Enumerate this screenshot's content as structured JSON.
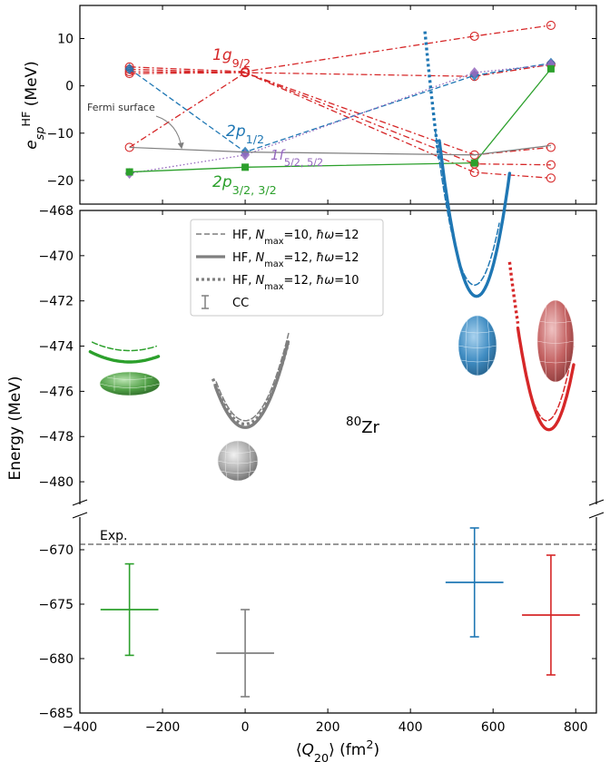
{
  "colors": {
    "red": "#d62728",
    "blue": "#1f77b4",
    "green": "#2ca02c",
    "gray": "#7f7f7f",
    "purple": "#9467bd"
  },
  "chart_data": [
    {
      "type": "line",
      "panel": "top",
      "ylabel_parts": [
        "e",
        "sp",
        "HF",
        " (MeV)"
      ],
      "ylim": [
        -25,
        17
      ],
      "yticks": [
        "10",
        "0",
        "−10",
        "−20"
      ],
      "annotations": {
        "fermi": "Fermi surface",
        "g92": [
          "1g",
          "9/2"
        ],
        "p12": [
          "2p",
          "1/2"
        ],
        "f52": [
          "1f",
          "5/2, 5/2"
        ],
        "p32": [
          "2p",
          "3/2, 3/2"
        ]
      },
      "series": [
        {
          "group": "1g9/2",
          "color": "red",
          "marker": "open-circle",
          "style": "dashdot",
          "x": [
            -280,
            0,
            555,
            740
          ],
          "y": [
            4.0,
            3.0,
            10.5,
            12.8
          ]
        },
        {
          "group": "1g9/2",
          "color": "red",
          "marker": "open-circle",
          "style": "dashdot",
          "x": [
            -280,
            0,
            555,
            740
          ],
          "y": [
            3.5,
            2.8,
            2.0,
            4.5
          ]
        },
        {
          "group": "1g9/2",
          "color": "red",
          "marker": "open-circle",
          "style": "dashdot",
          "x": [
            -280,
            0,
            555,
            740
          ],
          "y": [
            3.0,
            2.8,
            -14.6,
            -13.0
          ]
        },
        {
          "group": "1g9/2",
          "color": "red",
          "marker": "open-circle",
          "style": "dashdot",
          "x": [
            -280,
            0,
            555,
            740
          ],
          "y": [
            2.6,
            2.8,
            -16.5,
            -16.7
          ]
        },
        {
          "group": "1g9/2",
          "color": "red",
          "marker": "open-circle",
          "style": "dashdot",
          "x": [
            -280,
            0,
            555,
            740
          ],
          "y": [
            -13.0,
            2.8,
            -18.3,
            -19.5
          ]
        },
        {
          "group": "2p1/2",
          "color": "blue",
          "marker": "filled-diamond",
          "style": "dashed",
          "x": [
            -280,
            0,
            555,
            740
          ],
          "y": [
            3.6,
            -14.0,
            2.2,
            4.8
          ]
        },
        {
          "group": "1f5/2",
          "color": "purple",
          "marker": "filled-diamond",
          "style": "dotted",
          "x": [
            -280,
            0,
            555,
            740
          ],
          "y": [
            -18.5,
            -14.6,
            2.8,
            4.5
          ]
        },
        {
          "group": "2p3/2",
          "color": "green",
          "marker": "filled-square",
          "style": "solid",
          "x": [
            -280,
            0,
            555,
            740
          ],
          "y": [
            -18.2,
            -17.2,
            -16.3,
            3.6
          ]
        },
        {
          "group": "fermi",
          "color": "gray",
          "marker": "none",
          "style": "solid",
          "x": [
            -280,
            0,
            555,
            740
          ],
          "y": [
            -13.0,
            -14.0,
            -14.6,
            -12.6
          ]
        }
      ]
    },
    {
      "type": "line",
      "panel": "middle",
      "ylabel": "Energy (MeV)",
      "ylim": [
        -481,
        -468
      ],
      "yticks": [
        "−468",
        "−470",
        "−472",
        "−474",
        "−476",
        "−478",
        "−480"
      ],
      "nucleus": {
        "mass": "80",
        "symbol": "Zr"
      },
      "legend": {
        "placement": "upper-center",
        "entries": [
          {
            "style": "dashed",
            "parts": [
              "HF, ",
              "N",
              "max",
              "=10, ",
              "ħω",
              "=12"
            ]
          },
          {
            "style": "solid-thick",
            "parts": [
              "HF, ",
              "N",
              "max",
              "=12, ",
              "ħω",
              "=12"
            ]
          },
          {
            "style": "dotted",
            "parts": [
              "HF, ",
              "N",
              "max",
              "=12, ",
              "ħω",
              "=10"
            ]
          },
          {
            "style": "errorbar",
            "parts": [
              "CC"
            ]
          }
        ]
      },
      "series": [
        {
          "color": "green",
          "style": "dashed",
          "vertex": [
            -280,
            -474.2
          ],
          "curvature": 4.6e-05,
          "x_range": [
            -370,
            -215
          ]
        },
        {
          "color": "green",
          "style": "solid-thick",
          "vertex": [
            -280,
            -474.7
          ],
          "curvature": 5e-05,
          "x_range": [
            -375,
            -210
          ]
        },
        {
          "color": "gray",
          "style": "dashed",
          "vertex": [
            0,
            -477.3
          ],
          "curvature": 0.00035,
          "x_range": [
            -70,
            105
          ]
        },
        {
          "color": "gray",
          "style": "solid-thick",
          "vertex": [
            0,
            -477.6
          ],
          "curvature": 0.00035,
          "x_range": [
            -72,
            104
          ]
        },
        {
          "color": "gray",
          "style": "dotted",
          "vertex": [
            0,
            -477.45
          ],
          "curvature": 0.00033,
          "x_range": [
            -78,
            104
          ]
        },
        {
          "color": "blue",
          "style": "dashed",
          "vertex": [
            555,
            -471.3
          ],
          "curvature": 0.00076,
          "x_range": [
            460,
            615
          ]
        },
        {
          "color": "blue",
          "style": "solid-thick",
          "vertex": [
            560,
            -471.8
          ],
          "curvature": 0.00085,
          "x_range": [
            470,
            640
          ]
        },
        {
          "color": "blue",
          "style": "dotted",
          "vertex": [
            555,
            -471.6
          ],
          "curvature": 0.0008,
          "x_range": [
            435,
            470
          ]
        },
        {
          "color": "red",
          "style": "dashed",
          "vertex": [
            730,
            -477.3
          ],
          "curvature": 0.0008,
          "x_range": [
            660,
            795
          ]
        },
        {
          "color": "red",
          "style": "solid-thick",
          "vertex": [
            735,
            -477.7
          ],
          "curvature": 0.0008,
          "x_range": [
            660,
            795
          ]
        },
        {
          "color": "red",
          "style": "dotted",
          "vertex": [
            735,
            -477.5
          ],
          "curvature": 0.0008,
          "x_range": [
            640,
            660
          ]
        }
      ]
    },
    {
      "type": "scatter",
      "panel": "bottom",
      "xlabel_parts": [
        "⟨",
        "Q",
        "20",
        "⟩ (fm",
        "2",
        ")"
      ],
      "xlim": [
        -400,
        850
      ],
      "xticks": [
        "−400",
        "−200",
        "0",
        "200",
        "400",
        "600",
        "800"
      ],
      "ylim": [
        -685,
        -667
      ],
      "yticks": [
        "−670",
        "−675",
        "−680",
        "−685"
      ],
      "exp": {
        "label": "Exp.",
        "value": -669.5
      },
      "points": [
        {
          "color": "green",
          "x": -280,
          "y": -675.5,
          "err": 4.2,
          "xerr": 70
        },
        {
          "color": "gray",
          "x": 0,
          "y": -679.5,
          "err": 4.0,
          "xerr": 70
        },
        {
          "color": "blue",
          "x": 555,
          "y": -673.0,
          "err": 5.0,
          "xerr": 70
        },
        {
          "color": "red",
          "x": 740,
          "y": -676.0,
          "err": 5.5,
          "xerr": 70
        }
      ]
    }
  ]
}
